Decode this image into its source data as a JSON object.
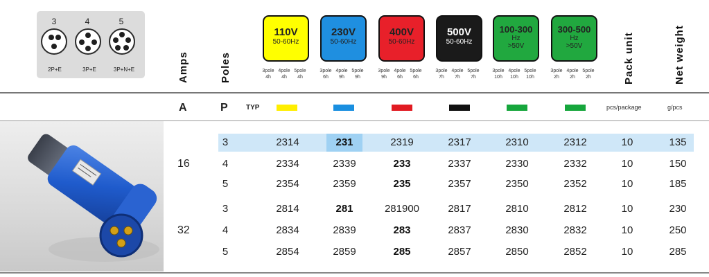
{
  "pin_diagrams": [
    {
      "number": "3",
      "label": "2P+E"
    },
    {
      "number": "4",
      "label": "3P+E"
    },
    {
      "number": "5",
      "label": "3P+N+E"
    }
  ],
  "headers": {
    "amps": "Amps",
    "poles": "Poles",
    "pack_unit": "Pack unit",
    "net_weight": "Net weight"
  },
  "voltages": [
    {
      "line1": "110V",
      "line2": "50-60Hz",
      "color": "#ffff00",
      "text_color": "#111111",
      "poles": [
        [
          "3pole",
          "4h"
        ],
        [
          "4pole",
          "4h"
        ],
        [
          "5pole",
          "4h"
        ]
      ]
    },
    {
      "line1": "230V",
      "line2": "50-60Hz",
      "color": "#1f8fe0",
      "text_color": "#111111",
      "poles": [
        [
          "3pole",
          "6h"
        ],
        [
          "4pole",
          "9h"
        ],
        [
          "5pole",
          "9h"
        ]
      ]
    },
    {
      "line1": "400V",
      "line2": "50-60Hz",
      "color": "#e8202a",
      "text_color": "#111111",
      "poles": [
        [
          "3pole",
          "9h"
        ],
        [
          "4pole",
          "6h"
        ],
        [
          "5pole",
          "6h"
        ]
      ]
    },
    {
      "line1": "500V",
      "line2": "50-60Hz",
      "color": "#1a1a1a",
      "text_color": "#ffffff",
      "poles": [
        [
          "3pole",
          "7h"
        ],
        [
          "4pole",
          "7h"
        ],
        [
          "5pole",
          "7h"
        ]
      ]
    },
    {
      "line1": "100-300",
      "line2": "Hz",
      "line3": ">50V",
      "color": "#21a83f",
      "text_color": "#111111",
      "poles": [
        [
          "3pole",
          "10h"
        ],
        [
          "4pole",
          "10h"
        ],
        [
          "5pole",
          "10h"
        ]
      ]
    },
    {
      "line1": "300-500",
      "line2": "Hz",
      "line3": ">50V",
      "color": "#21a83f",
      "text_color": "#111111",
      "poles": [
        [
          "3pole",
          "2h"
        ],
        [
          "4pole",
          "2h"
        ],
        [
          "5pole",
          "2h"
        ]
      ]
    }
  ],
  "units": {
    "amps": "A",
    "poles": "P",
    "typ": "TYP",
    "pack": "pcs/package",
    "weight": "g/pcs",
    "swatches": [
      "#ffee00",
      "#1a8fe0",
      "#e11b22",
      "#111111",
      "#16a63c",
      "#16a63c"
    ]
  },
  "groups": [
    {
      "amps": "16",
      "rows": [
        {
          "poles": "3",
          "codes": [
            "2314",
            "231",
            "2319",
            "2317",
            "2310",
            "2312"
          ],
          "pack": "10",
          "weight": "135"
        },
        {
          "poles": "4",
          "codes": [
            "2334",
            "2339",
            "233",
            "2337",
            "2330",
            "2332"
          ],
          "pack": "10",
          "weight": "150"
        },
        {
          "poles": "5",
          "codes": [
            "2354",
            "2359",
            "235",
            "2357",
            "2350",
            "2352"
          ],
          "pack": "10",
          "weight": "185"
        }
      ]
    },
    {
      "amps": "32",
      "rows": [
        {
          "poles": "3",
          "codes": [
            "2814",
            "281",
            "281900",
            "2817",
            "2810",
            "2812"
          ],
          "pack": "10",
          "weight": "230"
        },
        {
          "poles": "4",
          "codes": [
            "2834",
            "2839",
            "283",
            "2837",
            "2830",
            "2832"
          ],
          "pack": "10",
          "weight": "250"
        },
        {
          "poles": "5",
          "codes": [
            "2854",
            "2859",
            "285",
            "2857",
            "2850",
            "2852"
          ],
          "pack": "10",
          "weight": "285"
        }
      ]
    }
  ],
  "highlight_color": "#cfe7f8"
}
